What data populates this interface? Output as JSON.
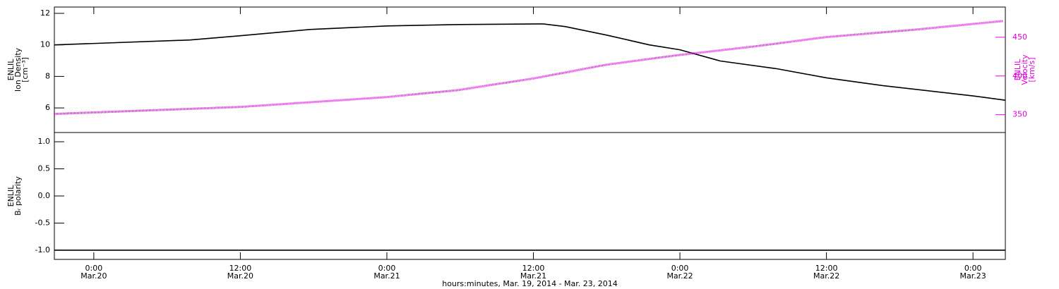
{
  "chart_data": [
    {
      "type": "line",
      "ylabel": [
        "ENLIL",
        "Ion Density",
        "[cm⁻³]"
      ],
      "y2label": [
        "ENLIL",
        "Velocity",
        "[km/s]"
      ],
      "xlim": [
        -3.23,
        74.65
      ],
      "ylim": [
        4.44,
        12.4
      ],
      "yticks": [
        6,
        8,
        10,
        12
      ],
      "y2lim": [
        327,
        489
      ],
      "y2ticks": [
        350,
        400,
        450
      ],
      "series": [
        {
          "name": "Ion Density",
          "color": "#000000",
          "x": [
            -3.23,
            7.9,
            12,
            17.7,
            24,
            29.9,
            36.8,
            38.6,
            42,
            45.5,
            48,
            51.3,
            55.9,
            60,
            64.6,
            72,
            74.65
          ],
          "values": [
            10.0,
            10.31,
            10.58,
            10.98,
            11.2,
            11.29,
            11.33,
            11.16,
            10.62,
            10.0,
            9.69,
            8.98,
            8.49,
            7.91,
            7.42,
            6.76,
            6.49
          ]
        },
        {
          "name": "Velocity",
          "color": "#e000e0",
          "axis": "y2",
          "x": [
            -3.23,
            12,
            23.94,
            29.83,
            36.17,
            41.94,
            47.88,
            54.06,
            59.83,
            67.33,
            74.48
          ],
          "values": [
            351,
            360,
            372.7,
            381.8,
            397.3,
            414.5,
            427,
            438,
            450,
            460,
            471
          ]
        }
      ]
    },
    {
      "type": "line",
      "ylabel": [
        "ENLIL",
        "Bᵣ polarity"
      ],
      "xlabel": "hours:minutes, Mar. 19, 2014 - Mar. 23, 2014",
      "xlim": [
        -3.23,
        74.65
      ],
      "xticks": [
        {
          "value": 0,
          "label": "0:00"
        },
        {
          "value": 12,
          "label": "12:00"
        },
        {
          "value": 24,
          "label": "0:00"
        },
        {
          "value": 36,
          "label": "12:00"
        },
        {
          "value": 48,
          "label": "0:00"
        },
        {
          "value": 60,
          "label": "12:00"
        },
        {
          "value": 72,
          "label": "0:00"
        }
      ],
      "xtick_dates": [
        "Mar.20",
        "Mar.20",
        "Mar.21",
        "Mar.21",
        "Mar.22",
        "Mar.22",
        "Mar.23"
      ],
      "ylim": [
        -1.17,
        1.17
      ],
      "yticks": [
        {
          "value": 1,
          "label": "1.0"
        },
        {
          "value": 0.5,
          "label": "0.5"
        },
        {
          "value": 0,
          "label": "0.0"
        },
        {
          "value": -0.5,
          "label": "-0.5"
        },
        {
          "value": -1,
          "label": "-1.0"
        }
      ],
      "series": [
        {
          "name": "Br polarity",
          "color": "#000000",
          "x": [
            -3.23,
            74.65
          ],
          "values": [
            -1,
            -1
          ]
        }
      ]
    }
  ]
}
